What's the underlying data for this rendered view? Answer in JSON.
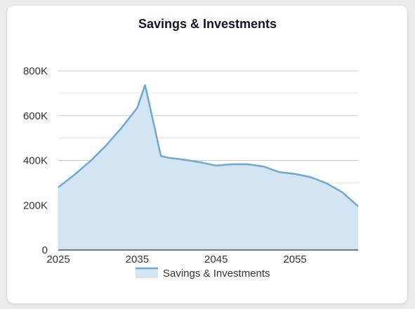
{
  "chart_data": {
    "type": "area",
    "title": "Savings & Investments",
    "xlabel": "",
    "ylabel": "",
    "xlim": [
      2025,
      2063
    ],
    "ylim": [
      0,
      800000
    ],
    "x_ticks": [
      2025,
      2035,
      2045,
      2055
    ],
    "x_tick_labels": [
      "2025",
      "2035",
      "2045",
      "2055"
    ],
    "y_ticks": [
      0,
      200000,
      400000,
      600000,
      800000
    ],
    "y_tick_labels": [
      "0",
      "200K",
      "400K",
      "600K",
      "800K"
    ],
    "grid": true,
    "legend_position": "bottom",
    "series": [
      {
        "name": "Savings & Investments",
        "color": "#6fa8d0",
        "fill": "#d3e4f3",
        "x": [
          2025,
          2027,
          2029,
          2031,
          2033,
          2035,
          2036,
          2037,
          2038,
          2039,
          2041,
          2043,
          2045,
          2047,
          2049,
          2051,
          2053,
          2055,
          2057,
          2059,
          2061,
          2063
        ],
        "values": [
          280000,
          335000,
          395000,
          465000,
          545000,
          635000,
          737000,
          580000,
          420000,
          412000,
          403000,
          392000,
          377000,
          383000,
          383000,
          373000,
          348000,
          340000,
          325000,
          298000,
          258000,
          195000
        ]
      }
    ]
  }
}
